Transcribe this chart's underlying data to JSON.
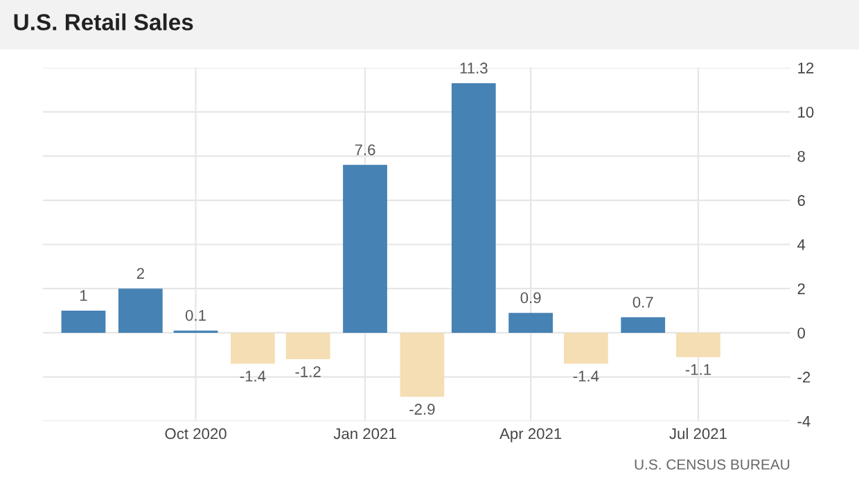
{
  "chart_data": {
    "type": "bar",
    "title": "U.S. Retail Sales",
    "x": [
      "2020-08",
      "2020-09",
      "2020-10",
      "2020-11",
      "2020-12",
      "2021-01",
      "2021-02",
      "2021-03",
      "2021-04",
      "2021-05",
      "2021-06",
      "2021-07"
    ],
    "values": [
      1,
      2,
      0.1,
      -1.4,
      -1.2,
      7.6,
      -2.9,
      11.3,
      0.9,
      -1.4,
      0.7,
      -1.1
    ],
    "colors": [
      "#4682b4",
      "#4682b4",
      "#4682b4",
      "#f5deb3",
      "#f5deb3",
      "#4682b4",
      "#f5deb3",
      "#4682b4",
      "#4682b4",
      "#f5deb3",
      "#4682b4",
      "#f5deb3"
    ],
    "xlim": [
      "2020-07-10",
      "2021-08-20"
    ],
    "xticks": [
      {
        "value": "2020-10",
        "label": "Oct 2020"
      },
      {
        "value": "2021-01",
        "label": "Jan 2021"
      },
      {
        "value": "2021-04",
        "label": "Apr 2021"
      },
      {
        "value": "2021-07",
        "label": "Jul 2021"
      }
    ],
    "ylim": [
      -4,
      12
    ],
    "yticks": [
      -4,
      -2,
      0,
      2,
      4,
      6,
      8,
      10,
      12
    ],
    "data_labels": true,
    "grid": true,
    "legend": false,
    "annotations": [
      "U.S. CENSUS BUREAU"
    ]
  }
}
